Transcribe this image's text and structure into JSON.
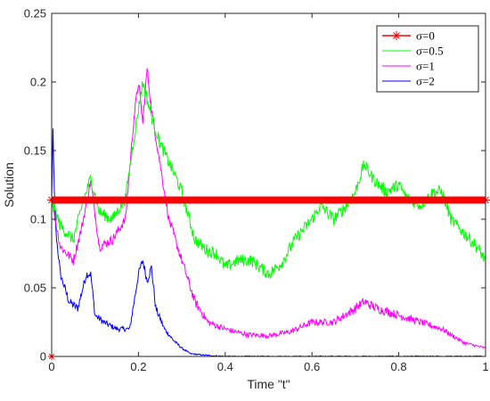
{
  "chart_data": {
    "type": "line",
    "title": "",
    "xlabel": "Time \"t\"",
    "ylabel": "Solution",
    "xlim": [
      0,
      1
    ],
    "ylim": [
      0,
      0.25
    ],
    "xticks": [
      0,
      0.2,
      0.4,
      0.6,
      0.8,
      1
    ],
    "xtick_labels": [
      "0",
      "0.2",
      "0.4",
      "0.6",
      "0.8",
      "1"
    ],
    "yticks": [
      0,
      0.05,
      0.1,
      0.15,
      0.2,
      0.25
    ],
    "ytick_labels": [
      "0",
      "0.05",
      "0.1",
      "0.15",
      "0.2",
      "0.25"
    ],
    "grid": false,
    "legend_position": "top-right",
    "series": [
      {
        "name": "σ=0",
        "color": "#ff0000",
        "marker": "asterisk",
        "x": [
          0,
          1
        ],
        "y": [
          0.114,
          0.114
        ]
      },
      {
        "name": "σ=0.5",
        "color": "#00ff00",
        "x": [
          0,
          0.02,
          0.05,
          0.07,
          0.09,
          0.11,
          0.14,
          0.17,
          0.19,
          0.21,
          0.23,
          0.25,
          0.28,
          0.3,
          0.33,
          0.36,
          0.38,
          0.4,
          0.43,
          0.46,
          0.5,
          0.53,
          0.56,
          0.6,
          0.62,
          0.65,
          0.68,
          0.7,
          0.72,
          0.74,
          0.77,
          0.8,
          0.82,
          0.85,
          0.88,
          0.9,
          0.92,
          0.95,
          0.98,
          1.0
        ],
        "y": [
          0.114,
          0.095,
          0.085,
          0.11,
          0.13,
          0.105,
          0.1,
          0.115,
          0.16,
          0.2,
          0.175,
          0.155,
          0.135,
          0.12,
          0.085,
          0.077,
          0.075,
          0.065,
          0.07,
          0.07,
          0.06,
          0.068,
          0.085,
          0.1,
          0.11,
          0.1,
          0.11,
          0.12,
          0.14,
          0.13,
          0.12,
          0.125,
          0.115,
          0.11,
          0.12,
          0.12,
          0.1,
          0.09,
          0.08,
          0.07
        ]
      },
      {
        "name": "σ=1",
        "color": "#ff00ff",
        "x": [
          0,
          0.02,
          0.05,
          0.07,
          0.09,
          0.11,
          0.14,
          0.17,
          0.19,
          0.2,
          0.21,
          0.22,
          0.23,
          0.25,
          0.27,
          0.29,
          0.31,
          0.33,
          0.36,
          0.4,
          0.45,
          0.5,
          0.55,
          0.6,
          0.65,
          0.7,
          0.72,
          0.75,
          0.8,
          0.85,
          0.9,
          0.95,
          1.0
        ],
        "y": [
          0.114,
          0.08,
          0.07,
          0.095,
          0.128,
          0.08,
          0.085,
          0.1,
          0.175,
          0.2,
          0.17,
          0.21,
          0.18,
          0.14,
          0.1,
          0.08,
          0.06,
          0.04,
          0.025,
          0.02,
          0.016,
          0.015,
          0.018,
          0.025,
          0.025,
          0.035,
          0.04,
          0.035,
          0.03,
          0.025,
          0.02,
          0.01,
          0.006
        ]
      },
      {
        "name": "σ=2",
        "color": "#0000ff",
        "x": [
          0,
          0.003,
          0.006,
          0.01,
          0.02,
          0.04,
          0.06,
          0.08,
          0.09,
          0.1,
          0.12,
          0.15,
          0.18,
          0.2,
          0.21,
          0.22,
          0.23,
          0.24,
          0.26,
          0.28,
          0.3,
          0.32,
          0.35,
          0.4,
          0.5,
          0.6,
          0.7,
          0.8,
          0.9,
          1.0
        ],
        "y": [
          0.114,
          0.165,
          0.12,
          0.09,
          0.06,
          0.04,
          0.035,
          0.06,
          0.06,
          0.03,
          0.025,
          0.02,
          0.02,
          0.06,
          0.07,
          0.055,
          0.065,
          0.035,
          0.02,
          0.012,
          0.006,
          0.002,
          0.001,
          0,
          0,
          0,
          0,
          0,
          0,
          0
        ]
      }
    ]
  }
}
